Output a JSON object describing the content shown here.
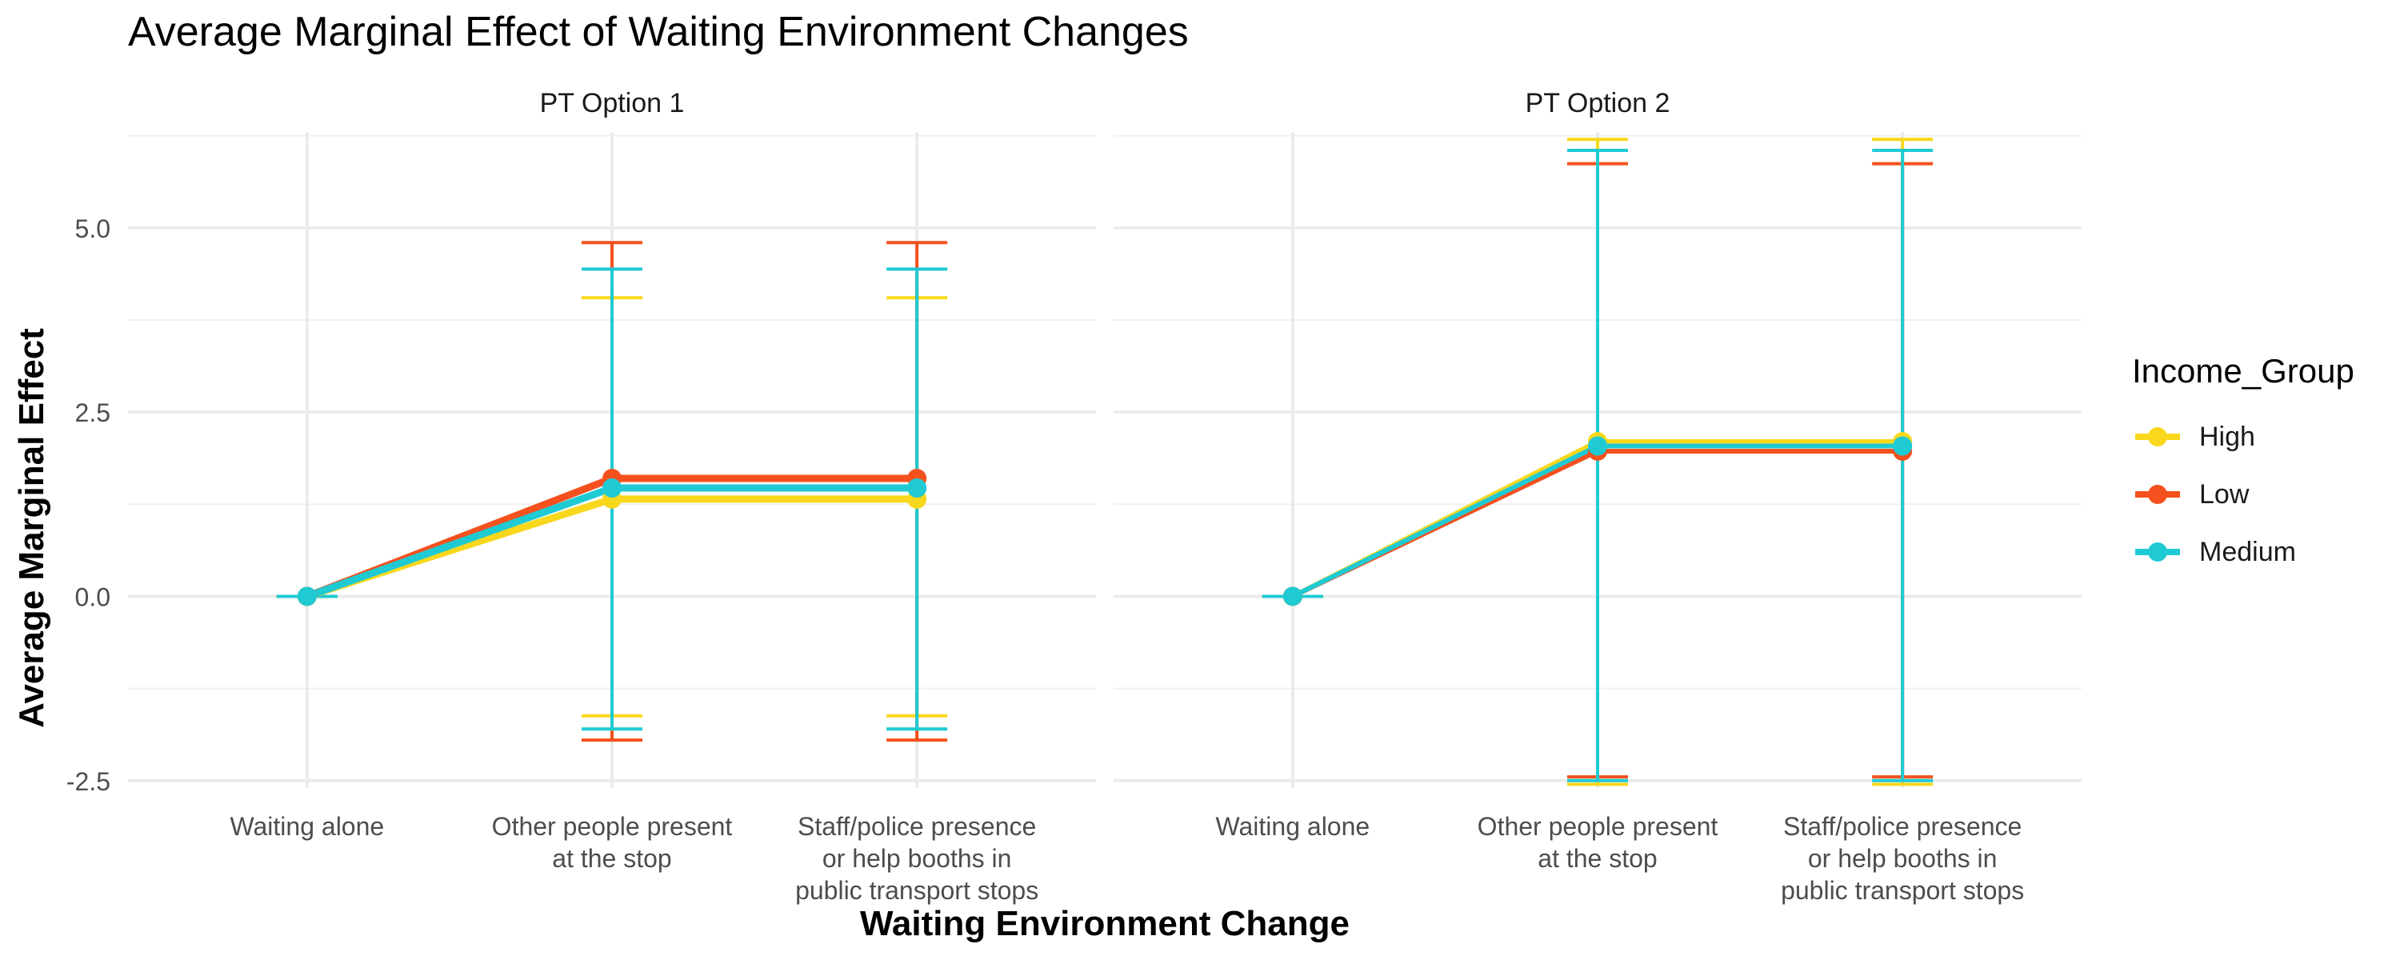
{
  "chart_data": {
    "type": "line",
    "title": "Average Marginal Effect of Waiting Environment Changes",
    "xlabel": "Waiting Environment Change",
    "ylabel": "Average Marginal Effect",
    "ylim": [
      -2.6,
      6.3
    ],
    "yticks": [
      "-2.5",
      "0.0",
      "2.5",
      "5.0"
    ],
    "ytick_values": [
      -2.5,
      0,
      2.5,
      5
    ],
    "categories": [
      [
        "Waiting alone"
      ],
      [
        "Other people present",
        "at the stop"
      ],
      [
        "Staff/police presence",
        "or help booths in",
        "public transport stops"
      ]
    ],
    "legend": {
      "title": "Income_Group",
      "position": "right"
    },
    "grid": true,
    "series_colors": {
      "High": "#F9D71C",
      "Low": "#F4511E",
      "Medium": "#1FCAD3"
    },
    "panels": [
      {
        "label": "PT Option 1",
        "series": [
          {
            "name": "High",
            "estimates": [
              0,
              1.32,
              1.32
            ],
            "ci_low": [
              0,
              -1.62,
              -1.62
            ],
            "ci_high": [
              0,
              4.05,
              4.05
            ]
          },
          {
            "name": "Low",
            "estimates": [
              0,
              1.6,
              1.6
            ],
            "ci_low": [
              0,
              -1.95,
              -1.95
            ],
            "ci_high": [
              0,
              4.8,
              4.8
            ]
          },
          {
            "name": "Medium",
            "estimates": [
              0,
              1.47,
              1.47
            ],
            "ci_low": [
              0,
              -1.8,
              -1.8
            ],
            "ci_high": [
              0,
              4.44,
              4.44
            ]
          }
        ]
      },
      {
        "label": "PT Option 2",
        "series": [
          {
            "name": "High",
            "estimates": [
              0,
              2.1,
              2.1
            ],
            "ci_low": [
              0,
              -2.55,
              -2.55
            ],
            "ci_high": [
              0,
              6.2,
              6.2
            ]
          },
          {
            "name": "Low",
            "estimates": [
              0,
              1.97,
              1.97
            ],
            "ci_low": [
              0,
              -2.45,
              -2.45
            ],
            "ci_high": [
              0,
              5.87,
              5.87
            ]
          },
          {
            "name": "Medium",
            "estimates": [
              0,
              2.04,
              2.04
            ],
            "ci_low": [
              0,
              -2.5,
              -2.5
            ],
            "ci_high": [
              0,
              6.05,
              6.05
            ]
          }
        ]
      }
    ]
  }
}
